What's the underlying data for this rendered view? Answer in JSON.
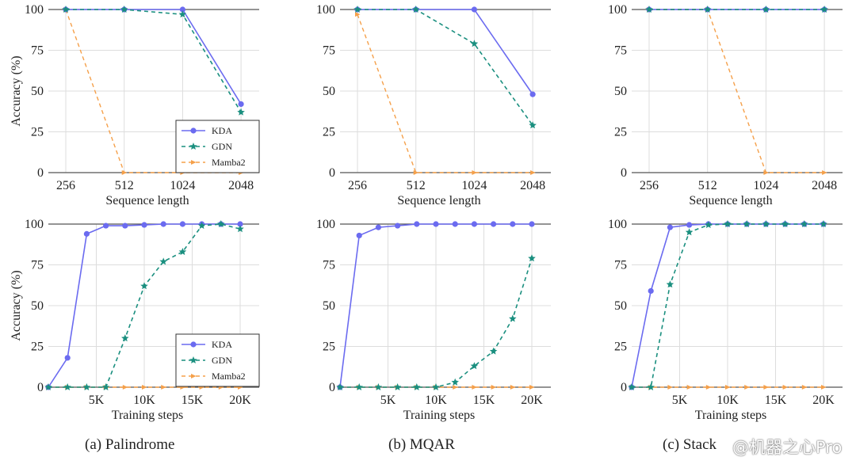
{
  "colors": {
    "KDA": "#6b6bf0",
    "GDN": "#1a8f7f",
    "Mamba2": "#f5a04a"
  },
  "legend": [
    "KDA",
    "GDN",
    "Mamba2"
  ],
  "captions": [
    "(a) Palindrome",
    "(b) MQAR",
    "(c) Stack"
  ],
  "watermark": "@机器之心Pro",
  "chart_data": [
    {
      "type": "line",
      "panel": "Palindrome",
      "xlabel": "Sequence length",
      "ylabel": "Accuracy (%)",
      "categories": [
        "256",
        "512",
        "1024",
        "2048"
      ],
      "ylim": [
        0,
        100
      ],
      "yticks": [
        0,
        25,
        50,
        75,
        100
      ],
      "grid": true,
      "legend": "bottom-right",
      "series": [
        {
          "name": "KDA",
          "values": [
            100,
            100,
            100,
            42
          ]
        },
        {
          "name": "GDN",
          "values": [
            100,
            100,
            97,
            37
          ]
        },
        {
          "name": "Mamba2",
          "values": [
            100,
            0,
            0,
            0
          ]
        }
      ]
    },
    {
      "type": "line",
      "panel": "MQAR",
      "xlabel": "Sequence length",
      "ylabel": "Accuracy (%)",
      "categories": [
        "256",
        "512",
        "1024",
        "2048"
      ],
      "ylim": [
        0,
        100
      ],
      "yticks": [
        0,
        25,
        50,
        75,
        100
      ],
      "grid": true,
      "series": [
        {
          "name": "KDA",
          "values": [
            100,
            100,
            100,
            48
          ]
        },
        {
          "name": "GDN",
          "values": [
            100,
            100,
            79,
            29
          ]
        },
        {
          "name": "Mamba2",
          "values": [
            97,
            0,
            0,
            0
          ]
        }
      ]
    },
    {
      "type": "line",
      "panel": "Stack",
      "xlabel": "Sequence length",
      "ylabel": "Accuracy (%)",
      "categories": [
        "256",
        "512",
        "1024",
        "2048"
      ],
      "ylim": [
        0,
        100
      ],
      "yticks": [
        0,
        25,
        50,
        75,
        100
      ],
      "grid": true,
      "series": [
        {
          "name": "KDA",
          "values": [
            100,
            100,
            100,
            100
          ]
        },
        {
          "name": "GDN",
          "values": [
            100,
            100,
            100,
            100
          ]
        },
        {
          "name": "Mamba2",
          "values": [
            100,
            100,
            0,
            0
          ]
        }
      ]
    },
    {
      "type": "line",
      "panel": "Palindrome",
      "xlabel": "Training steps",
      "ylabel": "Accuracy (%)",
      "x": [
        0,
        2000,
        4000,
        6000,
        8000,
        10000,
        12000,
        14000,
        16000,
        18000,
        20000
      ],
      "xticks": [
        "5K",
        "10K",
        "15K",
        "20K"
      ],
      "xlim": [
        0,
        23000
      ],
      "ylim": [
        0,
        100
      ],
      "yticks": [
        0,
        25,
        50,
        75,
        100
      ],
      "grid": true,
      "legend": "bottom-right",
      "series": [
        {
          "name": "KDA",
          "values": [
            0,
            18,
            94,
            99,
            99,
            99.5,
            100,
            100,
            100,
            100,
            100
          ]
        },
        {
          "name": "GDN",
          "values": [
            0,
            0,
            0,
            0,
            30,
            62,
            77,
            83,
            99,
            100,
            97
          ]
        },
        {
          "name": "Mamba2",
          "values": [
            0,
            0,
            0,
            0,
            0,
            0,
            0,
            0,
            0,
            0,
            0
          ]
        }
      ]
    },
    {
      "type": "line",
      "panel": "MQAR",
      "xlabel": "Training steps",
      "ylabel": "Accuracy (%)",
      "x": [
        0,
        2000,
        4000,
        6000,
        8000,
        10000,
        12000,
        14000,
        16000,
        18000,
        20000
      ],
      "xticks": [
        "5K",
        "10K",
        "15K",
        "20K"
      ],
      "xlim": [
        0,
        23000
      ],
      "ylim": [
        0,
        100
      ],
      "yticks": [
        0,
        25,
        50,
        75,
        100
      ],
      "grid": true,
      "series": [
        {
          "name": "KDA",
          "values": [
            0,
            93,
            98,
            99,
            100,
            100,
            100,
            100,
            100,
            100,
            100
          ]
        },
        {
          "name": "GDN",
          "values": [
            0,
            0,
            0,
            0,
            0,
            0,
            3,
            13,
            22,
            42,
            79
          ]
        },
        {
          "name": "Mamba2",
          "values": [
            0,
            0,
            0,
            0,
            0,
            0,
            0,
            0,
            0,
            0,
            0
          ]
        }
      ]
    },
    {
      "type": "line",
      "panel": "Stack",
      "xlabel": "Training steps",
      "ylabel": "Accuracy (%)",
      "x": [
        0,
        2000,
        4000,
        6000,
        8000,
        10000,
        12000,
        14000,
        16000,
        18000,
        20000
      ],
      "xticks": [
        "5K",
        "10K",
        "15K",
        "20K"
      ],
      "xlim": [
        0,
        23000
      ],
      "ylim": [
        0,
        100
      ],
      "yticks": [
        0,
        25,
        50,
        75,
        100
      ],
      "grid": true,
      "series": [
        {
          "name": "KDA",
          "values": [
            0,
            59,
            98,
            99.5,
            100,
            100,
            100,
            100,
            100,
            100,
            100
          ]
        },
        {
          "name": "GDN",
          "values": [
            0,
            0,
            63,
            95,
            99.5,
            100,
            100,
            100,
            100,
            100,
            100
          ]
        },
        {
          "name": "Mamba2",
          "values": [
            0,
            0,
            0,
            0,
            0,
            0,
            0,
            0,
            0,
            0,
            0
          ]
        }
      ]
    }
  ]
}
